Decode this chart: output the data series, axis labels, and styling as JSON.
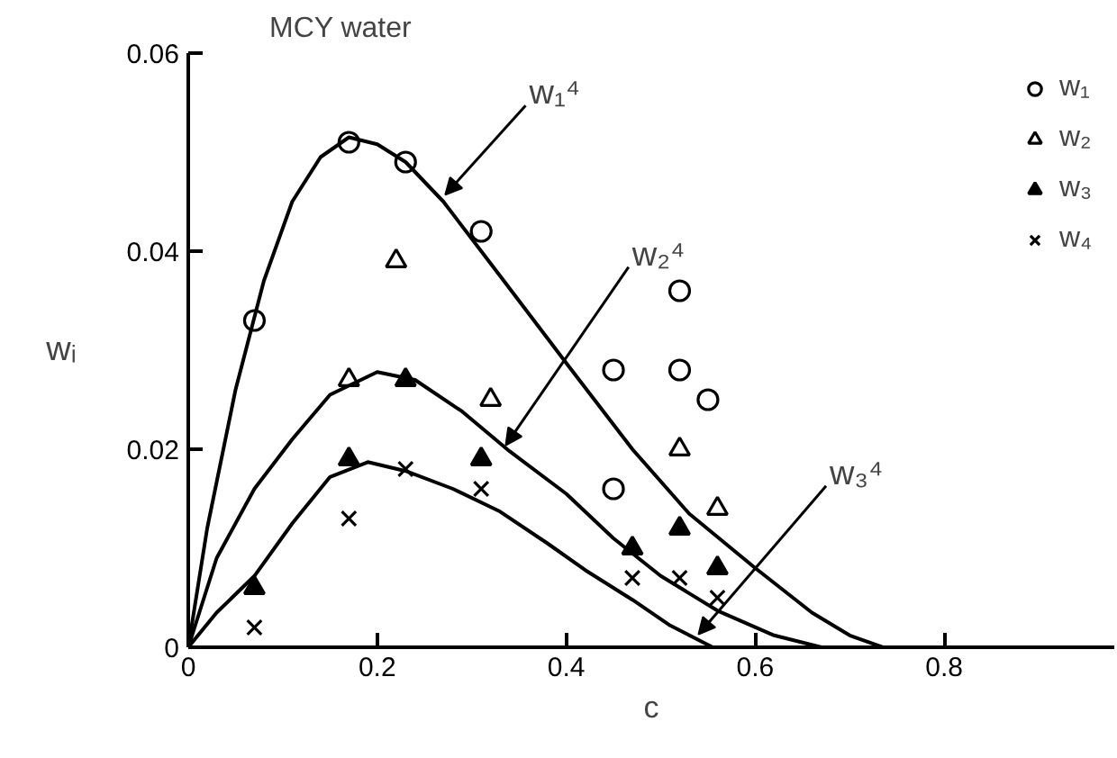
{
  "chart_data": {
    "type": "scatter",
    "title": "MCY water",
    "xlabel": "c",
    "ylabel": "wᵢ",
    "xlim": [
      0,
      0.98
    ],
    "ylim": [
      0,
      0.06
    ],
    "xticks": [
      0,
      0.2,
      0.4,
      0.6,
      0.8
    ],
    "yticks": [
      0,
      0.02,
      0.04,
      0.06
    ],
    "grid": false,
    "legend": "top right",
    "series": [
      {
        "name": "w₁",
        "marker": "circle",
        "color": "#000000",
        "x": [
          0.07,
          0.17,
          0.23,
          0.31,
          0.45,
          0.45,
          0.52,
          0.52,
          0.55
        ],
        "values": [
          0.033,
          0.051,
          0.049,
          0.042,
          0.028,
          0.016,
          0.036,
          0.028,
          0.025
        ]
      },
      {
        "name": "w₂",
        "marker": "triangle",
        "color": "#000000",
        "x": [
          0.17,
          0.22,
          0.32,
          0.52,
          0.56
        ],
        "values": [
          0.027,
          0.039,
          0.025,
          0.02,
          0.014
        ]
      },
      {
        "name": "w₃",
        "marker": "triangle",
        "color": "#000000",
        "x": [
          0.07,
          0.17,
          0.23,
          0.31,
          0.47,
          0.52,
          0.56
        ],
        "values": [
          0.006,
          0.019,
          0.027,
          0.019,
          0.01,
          0.012,
          0.008
        ]
      },
      {
        "name": "w₄",
        "marker": "cross",
        "color": "#000000",
        "x": [
          0.07,
          0.17,
          0.23,
          0.31,
          0.47,
          0.52,
          0.56
        ],
        "values": [
          0.002,
          0.013,
          0.018,
          0.016,
          0.007,
          0.007,
          0.005
        ]
      },
      {
        "type": "line",
        "color": "#000000",
        "x": [
          0,
          0.02,
          0.05,
          0.08,
          0.11,
          0.14,
          0.17,
          0.2,
          0.23,
          0.27,
          0.33,
          0.4,
          0.47,
          0.53,
          0.6,
          0.66,
          0.7,
          0.735
        ],
        "values": [
          0,
          0.012,
          0.026,
          0.037,
          0.045,
          0.0495,
          0.0515,
          0.0508,
          0.049,
          0.045,
          0.0375,
          0.0287,
          0.02,
          0.0135,
          0.008,
          0.0035,
          0.0012,
          0
        ]
      },
      {
        "type": "line",
        "color": "#000000",
        "x": [
          0,
          0.03,
          0.07,
          0.11,
          0.15,
          0.2,
          0.24,
          0.29,
          0.34,
          0.4,
          0.45,
          0.5,
          0.56,
          0.62,
          0.67
        ],
        "values": [
          0,
          0.009,
          0.016,
          0.021,
          0.0255,
          0.0278,
          0.027,
          0.0238,
          0.0198,
          0.0155,
          0.011,
          0.0072,
          0.0037,
          0.0012,
          0
        ]
      },
      {
        "type": "line",
        "color": "#000000",
        "x": [
          0,
          0.03,
          0.07,
          0.11,
          0.15,
          0.19,
          0.23,
          0.28,
          0.33,
          0.38,
          0.42,
          0.47,
          0.51,
          0.555
        ],
        "values": [
          0,
          0.0035,
          0.0072,
          0.0125,
          0.0172,
          0.0187,
          0.0178,
          0.016,
          0.0137,
          0.0105,
          0.0078,
          0.0048,
          0.0022,
          0
        ]
      }
    ],
    "annotations": [
      {
        "text": "w₁⁴",
        "x": 0.272,
        "y": 0.0457
      },
      {
        "text": "w₂⁴",
        "x": 0.336,
        "y": 0.0204
      },
      {
        "text": "w₃⁴",
        "x": 0.54,
        "y": 0.0013
      }
    ]
  }
}
